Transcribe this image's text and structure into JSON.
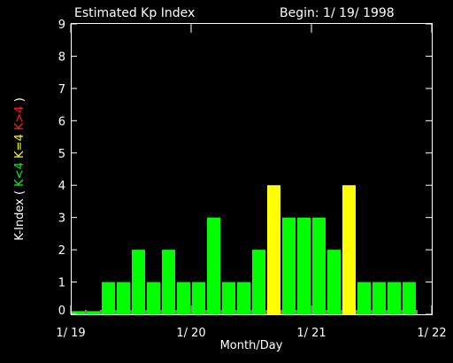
{
  "chart_data": {
    "type": "bar",
    "title": "Estimated Kp Index",
    "begin_label": "Begin: 1/ 19/ 1998",
    "xlabel": "Month/Day",
    "ylabel_parts": [
      {
        "text": "K-Index ( ",
        "color": "#ffffff"
      },
      {
        "text": "K<4",
        "color": "#00ff00"
      },
      {
        "text": " ",
        "color": "#ffffff"
      },
      {
        "text": "K=4",
        "color": "#ffff00"
      },
      {
        "text": " ",
        "color": "#ffffff"
      },
      {
        "text": "K>4",
        "color": "#ff2020"
      },
      {
        "text": " )",
        "color": "#ffffff"
      }
    ],
    "ylim": [
      0,
      9
    ],
    "yticks": [
      "0",
      "1",
      "2",
      "3",
      "4",
      "5",
      "6",
      "7",
      "8",
      "9"
    ],
    "xticks": [
      "1/ 19",
      "1/ 20",
      "1/ 21",
      "1/ 22"
    ],
    "interval_hours": 3,
    "values": [
      0.1,
      0.1,
      1,
      1,
      2,
      1,
      2,
      1,
      1,
      3,
      1,
      1,
      2,
      4,
      3,
      3,
      3,
      2,
      4,
      1,
      1,
      1,
      1
    ],
    "colors": {
      "below4": "#00ff00",
      "equal4": "#ffff00",
      "above4": "#ff2020",
      "axis": "#ffffff",
      "background": "#000000"
    }
  }
}
